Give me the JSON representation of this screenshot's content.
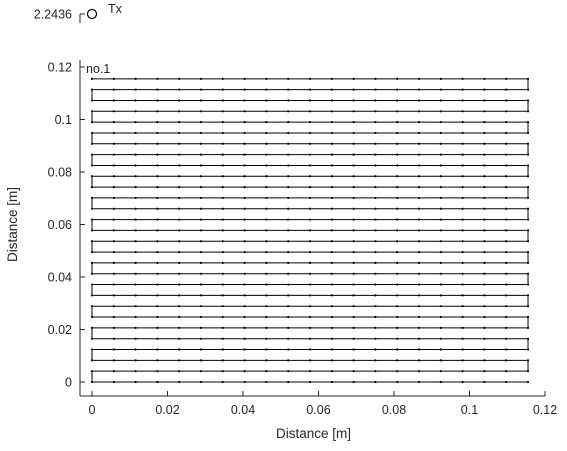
{
  "chart_data": {
    "type": "scatter",
    "title": "",
    "xlabel": "Distance [m]",
    "ylabel": "Distance [m]",
    "xlim": [
      0,
      0.12
    ],
    "ylim": [
      0,
      0.12
    ],
    "x_ticks": [
      0,
      0.02,
      0.04,
      0.06,
      0.08,
      0.1,
      0.12
    ],
    "x_tick_labels": [
      "0",
      "0.02",
      "0.04",
      "0.06",
      "0.08",
      "0.1",
      "0.12"
    ],
    "y_ticks": [
      0,
      0.02,
      0.04,
      0.06,
      0.08,
      0.1,
      0.12
    ],
    "y_tick_labels": [
      "0",
      "0.02",
      "0.04",
      "0.06",
      "0.08",
      "0.1",
      "0.12"
    ],
    "broken_axis_tick_label": "2.2436",
    "transmitter": {
      "label": "Tx",
      "x": 0,
      "y": 2.2436,
      "marker": "open-circle"
    },
    "scan_path": {
      "label": "no.1",
      "x_start": 0,
      "x_end": 0.1155,
      "x_step": 0.005775,
      "y_start": 0.1155,
      "y_end": 0,
      "y_step": 0.004125,
      "pattern": "serpentine",
      "line_color": "#000000",
      "marker": "dot"
    },
    "grid": false
  }
}
